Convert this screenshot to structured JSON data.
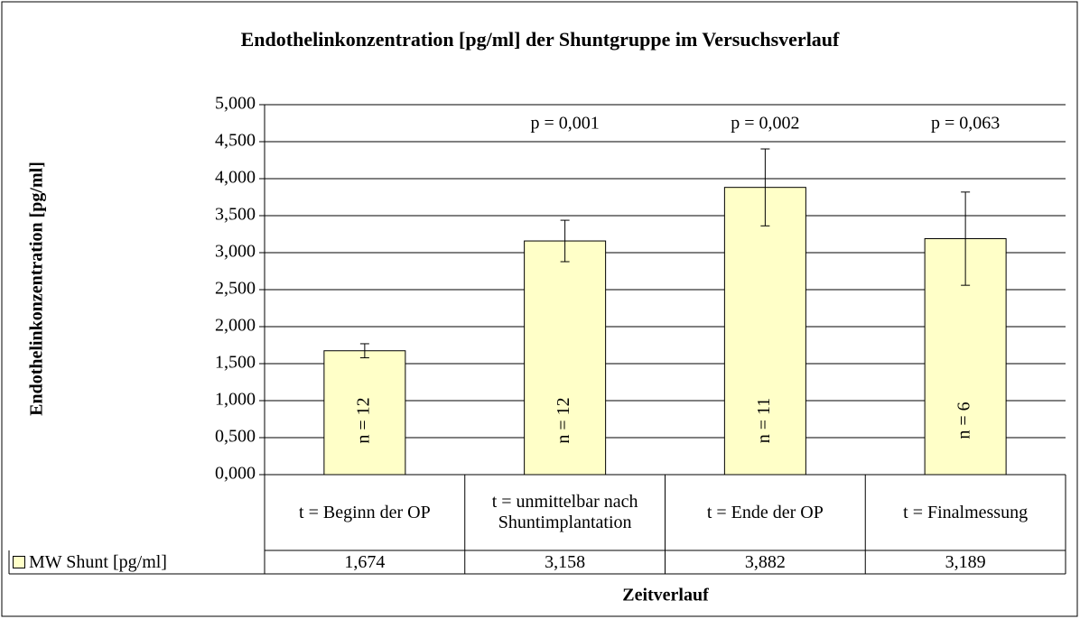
{
  "chart_data": {
    "type": "bar",
    "title": "Endothelinkonzentration [pg/ml] der Shuntgruppe im Versuchsverlauf",
    "y_label": "Endothelinkonzentration [pg/ml]",
    "x_label": "Zeitverlauf",
    "categories": [
      "t = Beginn der OP",
      "t = unmittelbar nach Shuntimplantation",
      "t = Ende der OP",
      "t = Finalmessung"
    ],
    "series": [
      {
        "name": "MW Shunt [pg/ml]",
        "color": "#ffffc8",
        "values": [
          1.674,
          3.158,
          3.882,
          3.189
        ],
        "value_labels": [
          "1,674",
          "3,158",
          "3,882",
          "3,189"
        ],
        "errors": [
          0.095,
          0.28,
          0.52,
          0.63
        ]
      }
    ],
    "n_labels": [
      "n = 12",
      "n = 12",
      "n = 11",
      "n = 6"
    ],
    "p_labels": [
      null,
      "p = 0,001",
      "p = 0,002",
      "p = 0,063"
    ],
    "ylim": [
      0,
      5
    ],
    "yticks": [
      {
        "value": 0,
        "label": "0,000"
      },
      {
        "value": 0.5,
        "label": "0,500"
      },
      {
        "value": 1,
        "label": "1,000"
      },
      {
        "value": 1.5,
        "label": "1,500"
      },
      {
        "value": 2,
        "label": "2,000"
      },
      {
        "value": 2.5,
        "label": "2,500"
      },
      {
        "value": 3,
        "label": "3,000"
      },
      {
        "value": 3.5,
        "label": "3,500"
      },
      {
        "value": 4,
        "label": "4,000"
      },
      {
        "value": 4.5,
        "label": "4,500"
      },
      {
        "value": 5,
        "label": "5,000"
      }
    ],
    "grid": true
  }
}
